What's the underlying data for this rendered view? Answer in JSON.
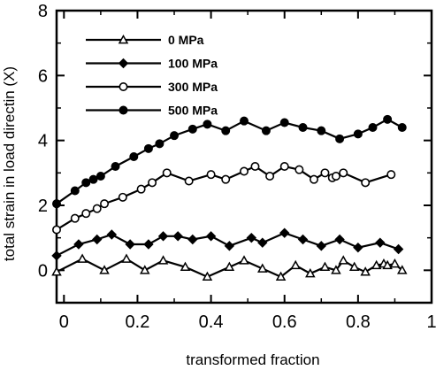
{
  "chart_data": {
    "type": "line",
    "xlabel": "transformed fraction",
    "ylabel": "total strain in load directin (X)",
    "xlim": [
      -0.02,
      1.0
    ],
    "ylim": [
      -1,
      8
    ],
    "xticks": [
      0,
      0.2,
      0.4,
      0.6,
      0.8,
      1
    ],
    "xtick_labels": [
      "0",
      "0.2",
      "0.4",
      "0.6",
      "0.8",
      "1"
    ],
    "yticks": [
      0,
      2,
      4,
      6,
      8
    ],
    "ytick_labels": [
      "0",
      "2",
      "4",
      "6",
      "8"
    ],
    "grid": false,
    "legend_position": "top-left",
    "series": [
      {
        "name": "0 MPa",
        "marker": "triangle-open",
        "x": [
          -0.02,
          0.05,
          0.11,
          0.17,
          0.22,
          0.27,
          0.33,
          0.39,
          0.45,
          0.49,
          0.54,
          0.59,
          0.63,
          0.67,
          0.71,
          0.74,
          0.76,
          0.79,
          0.82,
          0.85,
          0.87,
          0.88,
          0.9,
          0.92
        ],
        "y": [
          -0.05,
          0.35,
          0.0,
          0.35,
          0.0,
          0.3,
          0.1,
          -0.2,
          0.1,
          0.3,
          0.05,
          -0.2,
          0.15,
          -0.1,
          0.1,
          0.0,
          0.3,
          0.1,
          -0.05,
          0.15,
          0.2,
          0.15,
          0.2,
          0.0
        ]
      },
      {
        "name": "100 MPa",
        "marker": "diamond-filled",
        "x": [
          -0.02,
          0.04,
          0.09,
          0.13,
          0.18,
          0.23,
          0.27,
          0.31,
          0.35,
          0.4,
          0.45,
          0.51,
          0.54,
          0.6,
          0.65,
          0.7,
          0.75,
          0.8,
          0.86,
          0.91
        ],
        "y": [
          0.45,
          0.8,
          0.95,
          1.1,
          0.8,
          0.8,
          1.05,
          1.05,
          0.95,
          1.05,
          0.75,
          1.0,
          0.85,
          1.15,
          0.95,
          0.75,
          0.95,
          0.7,
          0.85,
          0.65
        ]
      },
      {
        "name": "300 MPa",
        "marker": "circle-open",
        "x": [
          -0.02,
          0.03,
          0.06,
          0.09,
          0.11,
          0.16,
          0.21,
          0.24,
          0.28,
          0.34,
          0.4,
          0.44,
          0.49,
          0.52,
          0.56,
          0.6,
          0.64,
          0.68,
          0.71,
          0.73,
          0.74,
          0.76,
          0.82,
          0.89
        ],
        "y": [
          1.25,
          1.6,
          1.75,
          1.9,
          2.05,
          2.25,
          2.5,
          2.7,
          3.0,
          2.75,
          2.95,
          2.8,
          3.05,
          3.2,
          2.9,
          3.2,
          3.1,
          2.8,
          3.0,
          2.85,
          2.9,
          3.0,
          2.7,
          2.95
        ]
      },
      {
        "name": "500 MPa",
        "marker": "circle-filled",
        "x": [
          -0.02,
          0.03,
          0.06,
          0.08,
          0.1,
          0.14,
          0.19,
          0.23,
          0.26,
          0.3,
          0.35,
          0.39,
          0.44,
          0.49,
          0.55,
          0.6,
          0.65,
          0.7,
          0.75,
          0.8,
          0.84,
          0.88,
          0.92
        ],
        "y": [
          2.05,
          2.45,
          2.7,
          2.8,
          2.9,
          3.2,
          3.5,
          3.75,
          3.9,
          4.15,
          4.35,
          4.5,
          4.3,
          4.6,
          4.3,
          4.55,
          4.4,
          4.3,
          4.05,
          4.2,
          4.4,
          4.65,
          4.4
        ]
      }
    ]
  }
}
